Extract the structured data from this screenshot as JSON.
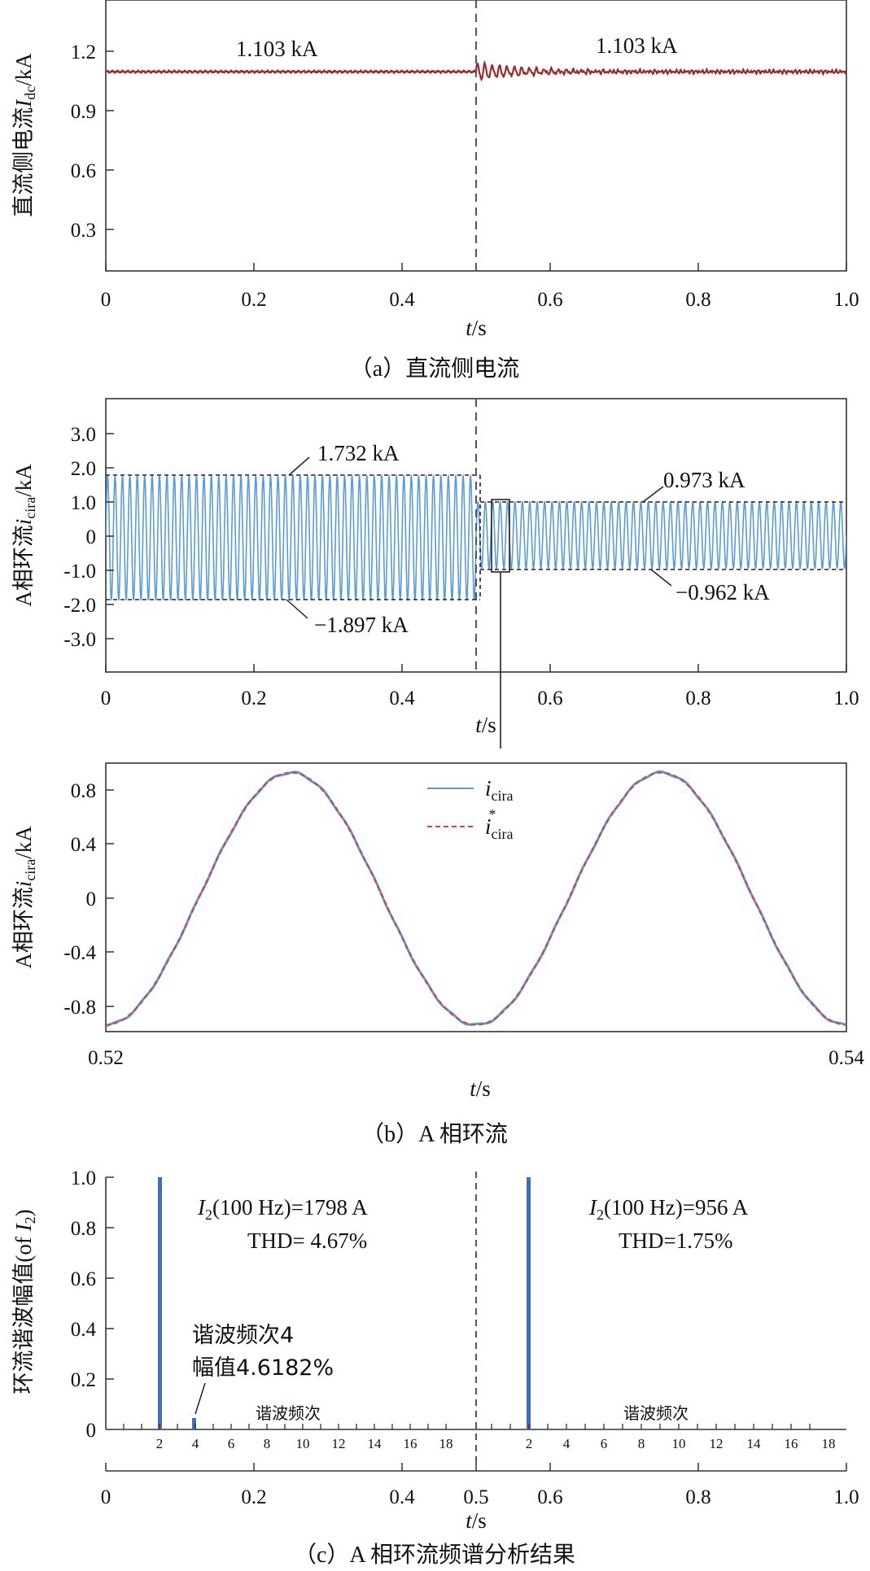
{
  "colors": {
    "dc_line": "#9b2b2b",
    "circ_line": "#5b9bd5",
    "ref_line": "#e23b3b",
    "spectrum_bar": "#3f6fb5",
    "axis": "#333333",
    "dashed": "#555555"
  },
  "captions": {
    "a": "（a）直流侧电流",
    "b": "（b）A 相环流",
    "c": "（c）A 相环流频谱分析结果"
  },
  "panel_a": {
    "ylabel": "直流侧电流I_dc/kA",
    "ylabel_main": "直流侧电流",
    "ylabel_sym": "I",
    "ylabel_sub": "dc",
    "ylabel_unit": "/kA",
    "xlabel_t": "t",
    "xlabel_unit": "/s",
    "annot_left": "1.103 kA",
    "annot_right": "1.103 kA",
    "yticks": [
      "1.2",
      "0.9",
      "0.6",
      "0.3"
    ],
    "xticks": [
      "0",
      "0.2",
      "0.4",
      "0.6",
      "0.8",
      "1.0"
    ]
  },
  "panel_b": {
    "ylabel_main": "A相环流",
    "ylabel_sym": "i",
    "ylabel_sub": "cira",
    "ylabel_unit": "/kA",
    "xlabel_t": "t",
    "xlabel_unit": "/s",
    "annot_max_before": "1.732 kA",
    "annot_min_before": "−1.897 kA",
    "annot_max_after": "0.973 kA",
    "annot_min_after": "−0.962 kA",
    "yticks": [
      "3.0",
      "2.0",
      "1.0",
      "0",
      "-1.0",
      "-2.0",
      "-3.0"
    ],
    "xticks": [
      "0",
      "0.2",
      "0.4",
      "0.6",
      "0.8",
      "1.0"
    ]
  },
  "panel_zoom": {
    "ylabel_main": "A相环流",
    "ylabel_sym": "i",
    "ylabel_sub": "cira",
    "ylabel_unit": "/kA",
    "xlabel_t": "t",
    "xlabel_unit": "/s",
    "legend": [
      {
        "sym": "i",
        "sub": "cira",
        "sup": ""
      },
      {
        "sym": "i",
        "sub": "cira",
        "sup": "*"
      }
    ],
    "yticks": [
      "0.8",
      "0.4",
      "0",
      "-0.4",
      "-0.8"
    ],
    "xticks": [
      "0.52",
      "0.54"
    ]
  },
  "panel_c": {
    "ylabel_main": "环流谐波幅值(of ",
    "ylabel_sym": "I",
    "ylabel_sub": "2",
    "ylabel_close": ")",
    "xlabel_t": "t",
    "xlabel_unit": "/s",
    "left_info_1": "(100 Hz)=1798 A",
    "left_info_2": "THD= 4.67%",
    "right_info_1": "(100 Hz)=956 A",
    "right_info_2": "THD=1.75%",
    "info_sym": "I",
    "info_sub": "2",
    "harmonic_note_1": "谐波频次4",
    "harmonic_note_2": "幅值4.6182%",
    "inner_axis_label": "谐波频次",
    "yticks": [
      "1.0",
      "0.8",
      "0.6",
      "0.4",
      "0.2",
      "0"
    ],
    "harmonic_ticks": [
      "2",
      "4",
      "6",
      "8",
      "10",
      "12",
      "14",
      "16",
      "18"
    ],
    "xticks": [
      "0",
      "0.2",
      "0.4",
      "0.5",
      "0.6",
      "0.8",
      "1.0"
    ]
  },
  "chart_data": [
    {
      "type": "line",
      "panel": "a",
      "x_range": [
        0,
        1.0
      ],
      "ylim": [
        0,
        1.5
      ],
      "yticks": [
        0.3,
        0.6,
        0.9,
        1.2
      ],
      "xticks": [
        0,
        0.2,
        0.4,
        0.6,
        0.8,
        1.0
      ],
      "event_t": 0.5,
      "series": [
        {
          "x": [
            0,
            0.1,
            0.2,
            0.3,
            0.4,
            0.49,
            0.5,
            0.51,
            0.52,
            0.53,
            0.55,
            0.6,
            0.7,
            0.8,
            0.9,
            1.0
          ],
          "values": [
            1.103,
            1.103,
            1.103,
            1.103,
            1.103,
            1.103,
            1.12,
            1.15,
            1.06,
            1.12,
            1.09,
            1.11,
            1.103,
            1.103,
            1.103,
            1.103
          ]
        }
      ],
      "annotations": [
        "1.103 kA",
        "1.103 kA"
      ],
      "grid": false
    },
    {
      "type": "line",
      "panel": "b",
      "x_range": [
        0,
        1.0
      ],
      "ylim": [
        -4.0,
        4.0
      ],
      "yticks": [
        -3.0,
        -2.0,
        -1.0,
        0,
        1.0,
        2.0,
        3.0
      ],
      "xticks": [
        0,
        0.2,
        0.4,
        0.6,
        0.8,
        1.0
      ],
      "event_t": 0.5,
      "envelope": {
        "before": {
          "t": [
            0,
            0.5
          ],
          "max": 1.732,
          "min": -1.897
        },
        "after": {
          "t": [
            0.5,
            1.0
          ],
          "max": 0.973,
          "min": -0.962
        }
      },
      "frequency_hz": 100,
      "zoom_window": [
        0.52,
        0.54
      ],
      "annotations": [
        "1.732 kA",
        "−1.897 kA",
        "0.973 kA",
        "−0.962 kA"
      ],
      "grid": false
    },
    {
      "type": "line",
      "panel": "b-zoom",
      "x_range": [
        0.52,
        0.54
      ],
      "ylim": [
        -0.98,
        1.0
      ],
      "yticks": [
        -0.8,
        -0.4,
        0,
        0.4,
        0.8
      ],
      "xticks": [
        0.52,
        0.54
      ],
      "amplitude": 0.93,
      "frequency_hz": 100,
      "peaks_t": [
        0.525,
        0.535
      ],
      "troughs_t": [
        0.52,
        0.53,
        0.54
      ],
      "legend_placement": "top-center",
      "grid": false
    },
    {
      "type": "bar",
      "panel": "c",
      "ylim": [
        0,
        1.0
      ],
      "yticks": [
        0,
        0.2,
        0.4,
        0.6,
        0.8,
        1.0
      ],
      "xticks": [
        0,
        0.2,
        0.4,
        0.5,
        0.6,
        0.8,
        1.0
      ],
      "divider_t": 0.5,
      "harmonic_ticks": [
        2,
        4,
        6,
        8,
        10,
        12,
        14,
        16,
        18
      ],
      "left": {
        "harmonics": [
          2,
          4
        ],
        "values": [
          1.0,
          0.046182
        ],
        "I2_A": 1798,
        "THD_percent": 4.67
      },
      "right": {
        "harmonics": [
          2
        ],
        "values": [
          1.0
        ],
        "I2_A": 956,
        "THD_percent": 1.75
      },
      "grid": false
    }
  ]
}
